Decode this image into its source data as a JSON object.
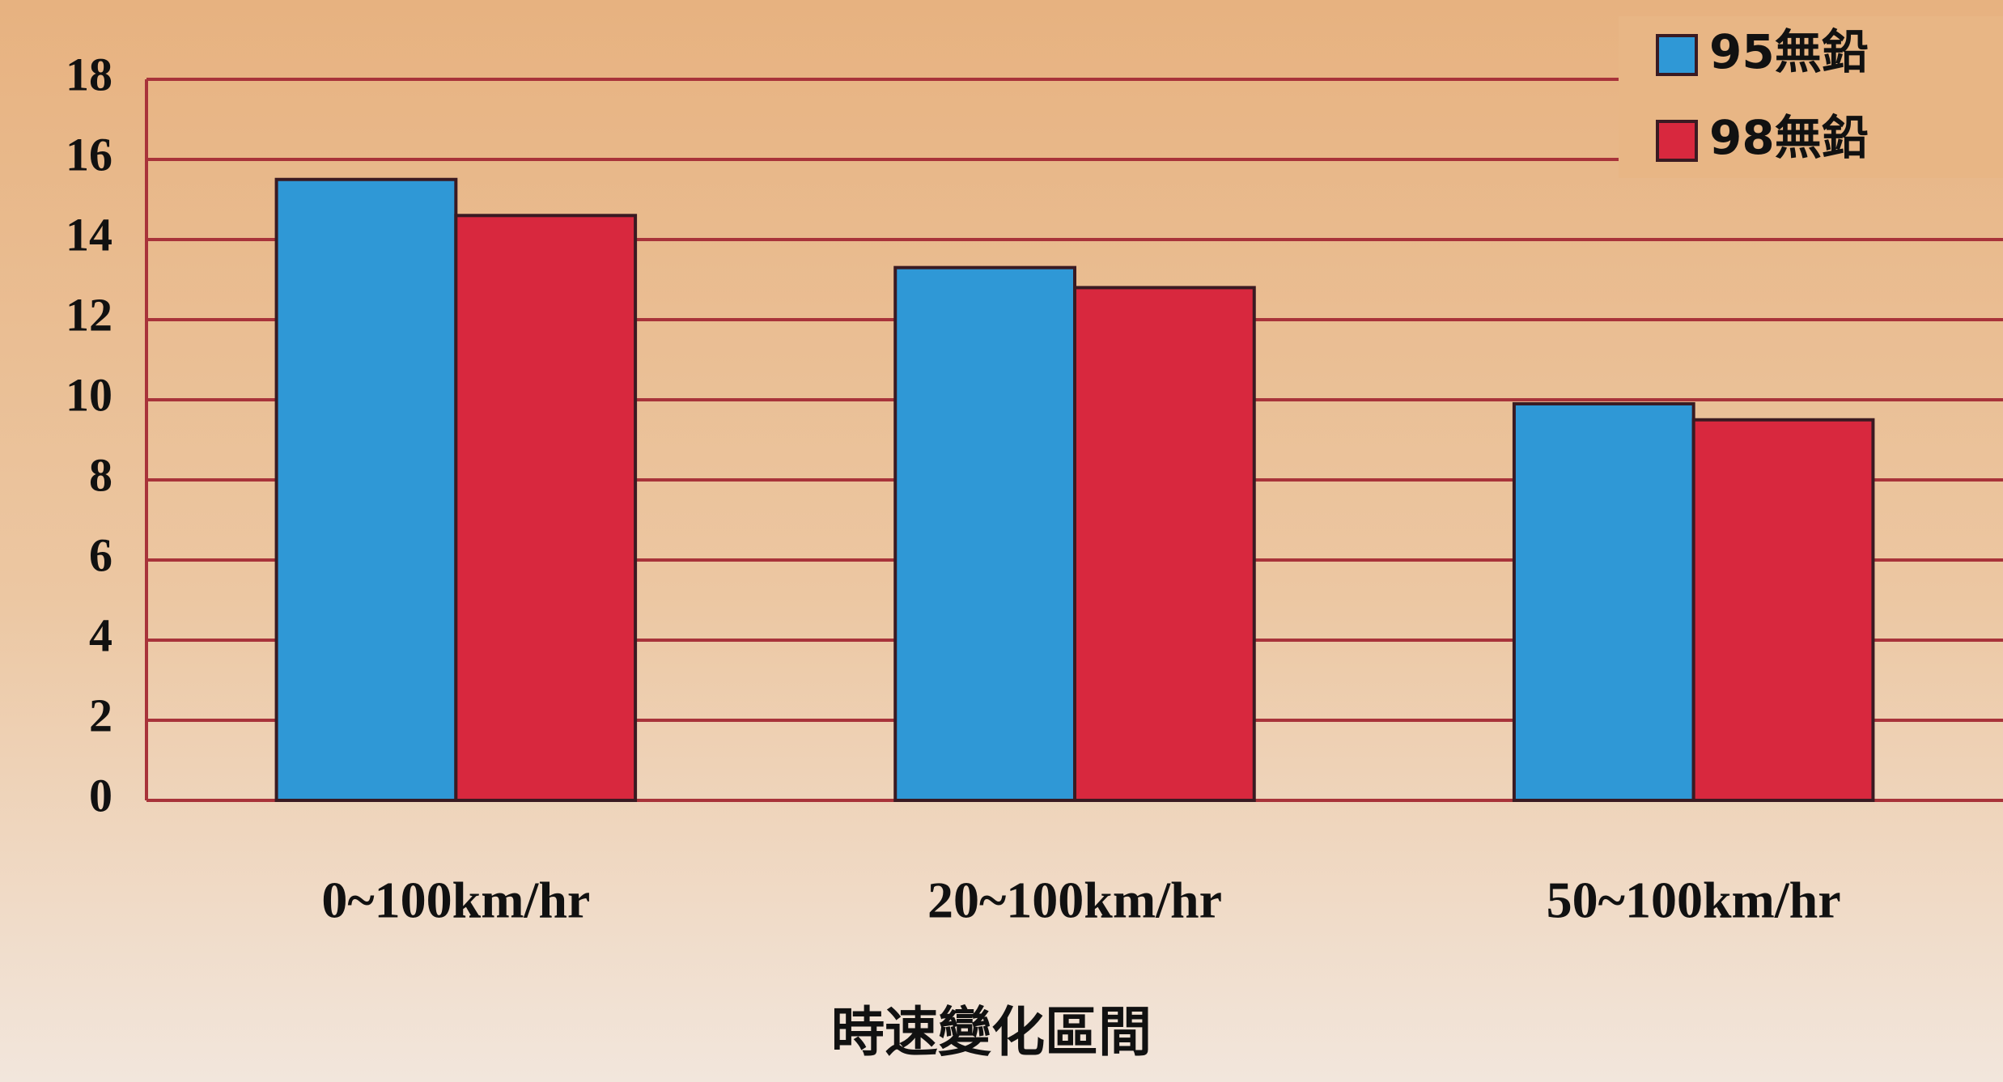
{
  "chart_data": {
    "type": "bar",
    "categories": [
      "0~100km/hr",
      "20~100km/hr",
      "50~100km/hr"
    ],
    "series": [
      {
        "name": "95無鉛",
        "color": "#2f98d6",
        "values": [
          15.5,
          13.3,
          9.9
        ]
      },
      {
        "name": "98無鉛",
        "color": "#d8283e",
        "values": [
          14.6,
          12.8,
          9.5
        ]
      }
    ],
    "xlabel": "時速變化區間",
    "ylim": [
      0,
      18
    ],
    "yticks": [
      0,
      2,
      4,
      6,
      8,
      10,
      12,
      14,
      16,
      18
    ],
    "grid": true,
    "legend": "top-right"
  }
}
